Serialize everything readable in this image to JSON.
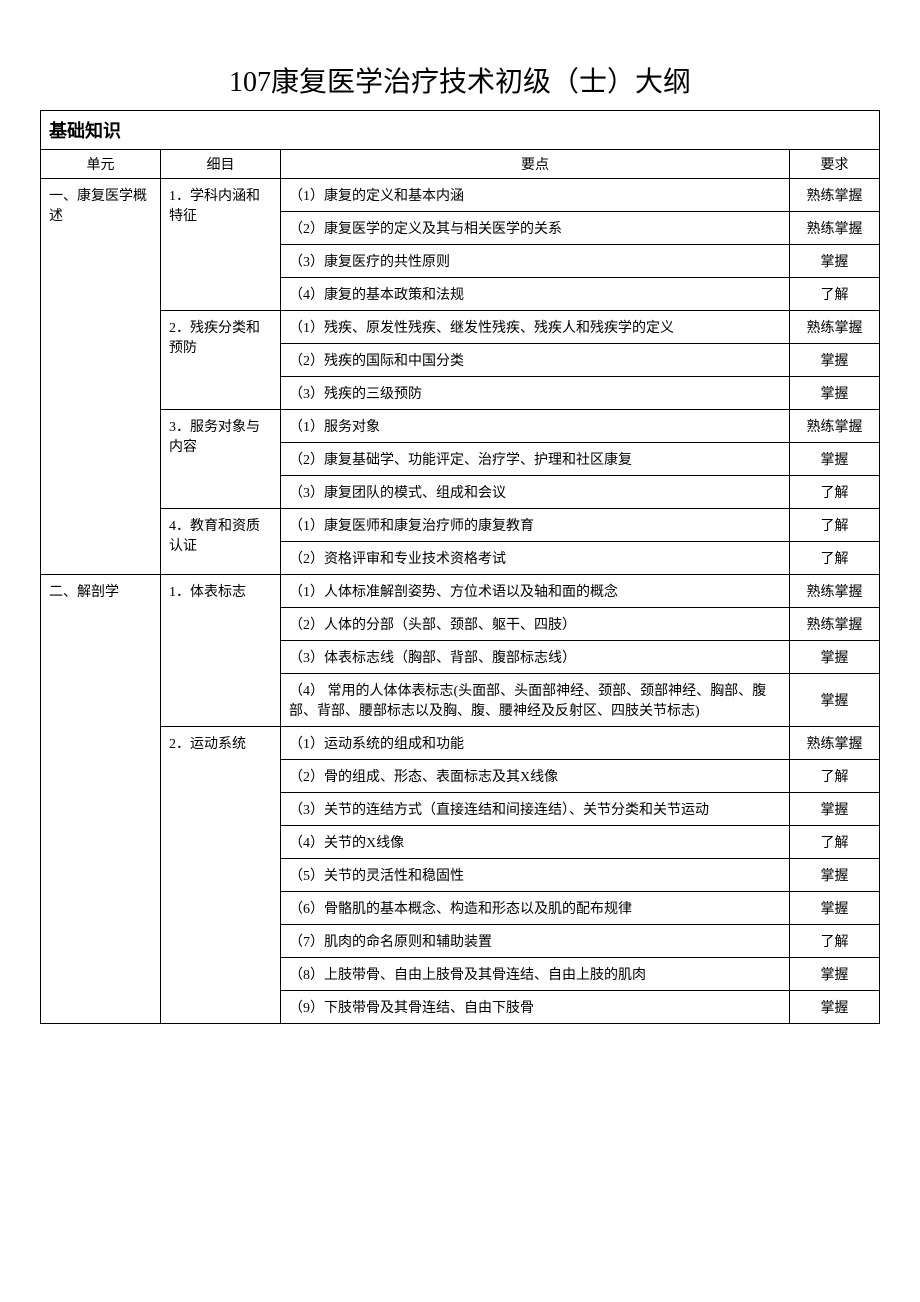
{
  "title": "107康复医学治疗技术初级（士）大纲",
  "section": "基础知识",
  "headers": {
    "unit": "单元",
    "item": "细目",
    "point": "要点",
    "req": "要求"
  },
  "rows": [
    {
      "unit": "一、康复医学概述",
      "unit_rowspan": 12,
      "item": "1．学科内涵和特征",
      "item_rowspan": 4,
      "point": "（1）康复的定义和基本内涵",
      "req": "熟练掌握"
    },
    {
      "point": "（2）康复医学的定义及其与相关医学的关系",
      "req": "熟练掌握"
    },
    {
      "point": "（3）康复医疗的共性原则",
      "req": "掌握"
    },
    {
      "point": "（4）康复的基本政策和法规",
      "req": "了解"
    },
    {
      "item": "2．残疾分类和预防",
      "item_rowspan": 3,
      "point": "（1）残疾、原发性残疾、继发性残疾、残疾人和残疾学的定义",
      "req": "熟练掌握"
    },
    {
      "point": "（2）残疾的国际和中国分类",
      "req": "掌握"
    },
    {
      "point": "（3）残疾的三级预防",
      "req": "掌握"
    },
    {
      "item": "3．服务对象与内容",
      "item_rowspan": 3,
      "point": "（1）服务对象",
      "req": "熟练掌握"
    },
    {
      "point": "（2）康复基础学、功能评定、治疗学、护理和社区康复",
      "req": "掌握"
    },
    {
      "point": "（3）康复团队的模式、组成和会议",
      "req": "了解"
    },
    {
      "item": "4．教育和资质认证",
      "item_rowspan": 2,
      "point": "（1）康复医师和康复治疗师的康复教育",
      "req": "了解"
    },
    {
      "point": "（2）资格评审和专业技术资格考试",
      "req": "了解"
    },
    {
      "unit": "二、解剖学",
      "unit_rowspan": 13,
      "item": "1．体表标志",
      "item_rowspan": 4,
      "point": "（1）人体标准解剖姿势、方位术语以及轴和面的概念",
      "req": "熟练掌握"
    },
    {
      "point": "（2）人体的分部（头部、颈部、躯干、四肢）",
      "req": "熟练掌握"
    },
    {
      "point": "（3）体表标志线（胸部、背部、腹部标志线）",
      "req": "掌握"
    },
    {
      "point": "（4） 常用的人体体表标志(头面部、头面部神经、颈部、颈部神经、胸部、腹部、背部、腰部标志以及胸、腹、腰神经及反射区、四肢关节标志)",
      "req": "掌握"
    },
    {
      "item": "2．运动系统",
      "item_rowspan": 9,
      "point": "（1）运动系统的组成和功能",
      "req": "熟练掌握"
    },
    {
      "point": "（2）骨的组成、形态、表面标志及其X线像",
      "req": "了解"
    },
    {
      "point": "（3）关节的连结方式（直接连结和间接连结）、关节分类和关节运动",
      "req": "掌握"
    },
    {
      "point": "（4）关节的X线像",
      "req": "了解"
    },
    {
      "point": "（5）关节的灵活性和稳固性",
      "req": "掌握"
    },
    {
      "point": "（6）骨骼肌的基本概念、构造和形态以及肌的配布规律",
      "req": "掌握"
    },
    {
      "point": "（7）肌肉的命名原则和辅助装置",
      "req": "了解"
    },
    {
      "point": "（8）上肢带骨、自由上肢骨及其骨连结、自由上肢的肌肉",
      "req": "掌握"
    },
    {
      "point": "（9）下肢带骨及其骨连结、自由下肢骨",
      "req": "掌握"
    }
  ]
}
